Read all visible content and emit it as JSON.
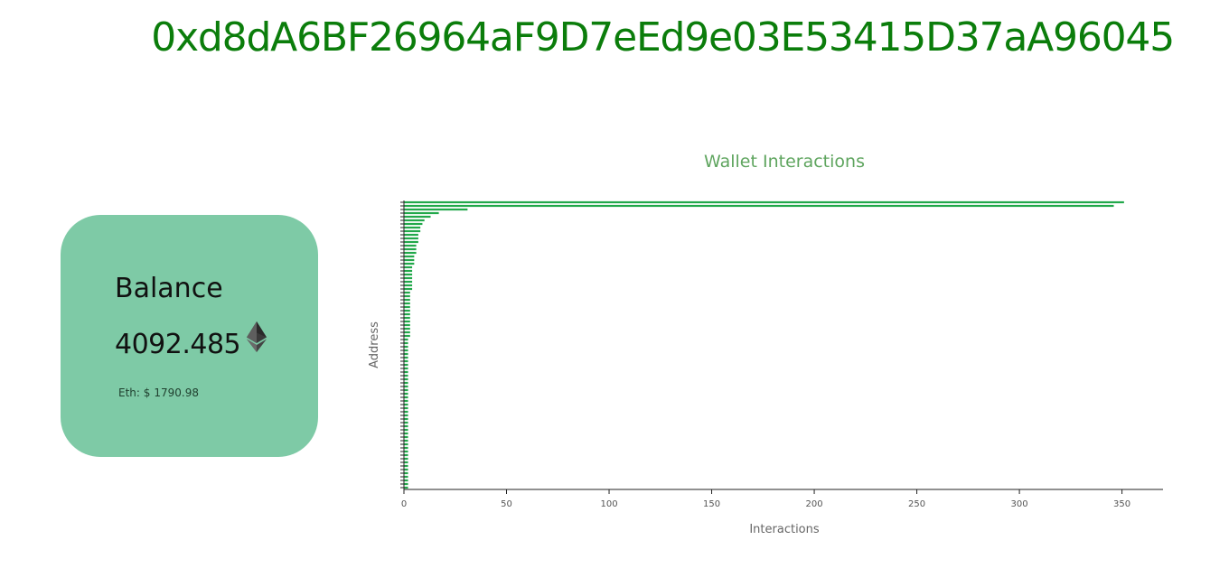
{
  "header": {
    "address": "0xd8dA6BF26964aF9D7eEd9e03E53415D37aA96045"
  },
  "balance_card": {
    "title": "Balance",
    "value": "4092.485",
    "currency_icon": "ethereum-icon",
    "eth_price_label": "Eth: $",
    "eth_price_value": "1790.98"
  },
  "colors": {
    "address": "#0b7d0b",
    "card_background": "#7ecaa6",
    "bar": "#22a84a",
    "chart_title": "#5fa55f"
  },
  "chart_data": {
    "type": "bar",
    "orientation": "horizontal",
    "title": "Wallet Interactions",
    "xlabel": "Interactions",
    "ylabel": "Address",
    "xlim": [
      0,
      370
    ],
    "xticks": [
      0,
      50,
      100,
      150,
      200,
      250,
      300,
      350
    ],
    "grid": false,
    "values": [
      351,
      346,
      31,
      17,
      13,
      10,
      9,
      8,
      8,
      7,
      7,
      7,
      6,
      6,
      6,
      5,
      5,
      5,
      4,
      4,
      4,
      4,
      4,
      4,
      4,
      3,
      3,
      3,
      3,
      3,
      3,
      3,
      3,
      3,
      3,
      3,
      3,
      3,
      2,
      2,
      2,
      2,
      2,
      2,
      2,
      2,
      2,
      2,
      2,
      2,
      2,
      2,
      2,
      2,
      2,
      2,
      2,
      2,
      2,
      2,
      2,
      2,
      2,
      2,
      2,
      2,
      2,
      2,
      2,
      2,
      2,
      2,
      2,
      2,
      2,
      2,
      2,
      2,
      2,
      2
    ]
  }
}
